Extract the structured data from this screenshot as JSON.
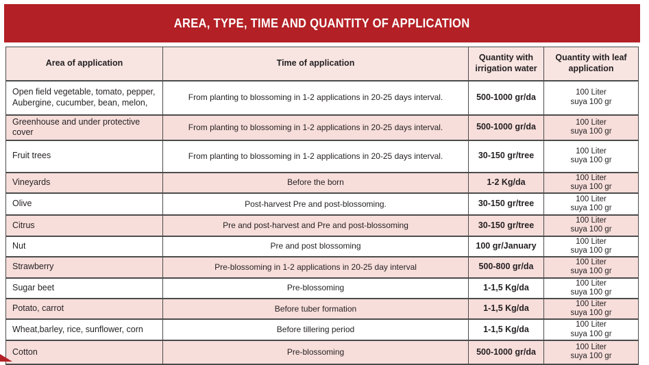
{
  "title": "AREA, TYPE, TIME AND QUANTITY OF APPLICATION",
  "colors": {
    "banner_red": "#b32025",
    "row_pink": "#f7dedb",
    "header_pink": "#f8e5e2",
    "text_dark": "#231f20",
    "border_dark": "#4a4a4a"
  },
  "table": {
    "headers": [
      "Area of application",
      "Time of application",
      "Quantity with irrigation water",
      "Quantity with leaf application"
    ],
    "rows": [
      {
        "area": "Open field vegetable, tomato, pepper, Aubergine, cucumber, bean, melon,",
        "time": "From planting to blossoming in 1-2 applications in 20-25 days interval.",
        "irrigation": "500-1000 gr/da",
        "leaf_line1": "100 Liter",
        "leaf_line2": "suya 100 gr"
      },
      {
        "area": "Greenhouse and under protective cover",
        "time": "From planting to blossoming in 1-2 applications in 20-25 days interval.",
        "irrigation": "500-1000 gr/da",
        "leaf_line1": "100 Liter",
        "leaf_line2": "suya 100 gr"
      },
      {
        "area": "Fruit trees",
        "time": "From planting to blossoming in 1-2 applications in 20-25 days interval.",
        "irrigation": "30-150 gr/tree",
        "leaf_line1": "100 Liter",
        "leaf_line2": "suya 100 gr"
      },
      {
        "area": "Vineyards",
        "time": "Before the born",
        "irrigation": "1-2 Kg/da",
        "leaf_line1": "100 Liter",
        "leaf_line2": "suya 100 gr"
      },
      {
        "area": "Olive",
        "time": "Post-harvest Pre and post-blossoming.",
        "irrigation": "30-150 gr/tree",
        "leaf_line1": "100 Liter",
        "leaf_line2": "suya 100 gr"
      },
      {
        "area": "Citrus",
        "time": "Pre and post-harvest and Pre and post-blossoming",
        "irrigation": "30-150 gr/tree",
        "leaf_line1": "100 Liter",
        "leaf_line2": "suya 100 gr"
      },
      {
        "area": "Nut",
        "time": "Pre and post blossoming",
        "irrigation": "100 gr/January",
        "leaf_line1": "100 Liter",
        "leaf_line2": "suya 100 gr"
      },
      {
        "area": "Strawberry",
        "time": "Pre-blossoming in 1-2 applications in 20-25 day interval",
        "irrigation": "500-800 gr/da",
        "leaf_line1": "100 Liter",
        "leaf_line2": "suya 100 gr"
      },
      {
        "area": "Sugar beet",
        "time": "Pre-blossoming",
        "irrigation": "1-1,5 Kg/da",
        "leaf_line1": "100 Liter",
        "leaf_line2": "suya 100 gr"
      },
      {
        "area": "Potato, carrot",
        "time": "Before tuber formation",
        "irrigation": "1-1,5 Kg/da",
        "leaf_line1": "100 Liter",
        "leaf_line2": "suya 100 gr"
      },
      {
        "area": "Wheat,barley, rice, sunflower, corn",
        "time": "Before tillering period",
        "irrigation": "1-1,5 Kg/da",
        "leaf_line1": "100 Liter",
        "leaf_line2": "suya 100 gr"
      },
      {
        "area": "Cotton",
        "time": "Pre-blossoming",
        "irrigation": "500-1000 gr/da",
        "leaf_line1": "100 Liter",
        "leaf_line2": "suya 100 gr"
      }
    ]
  }
}
